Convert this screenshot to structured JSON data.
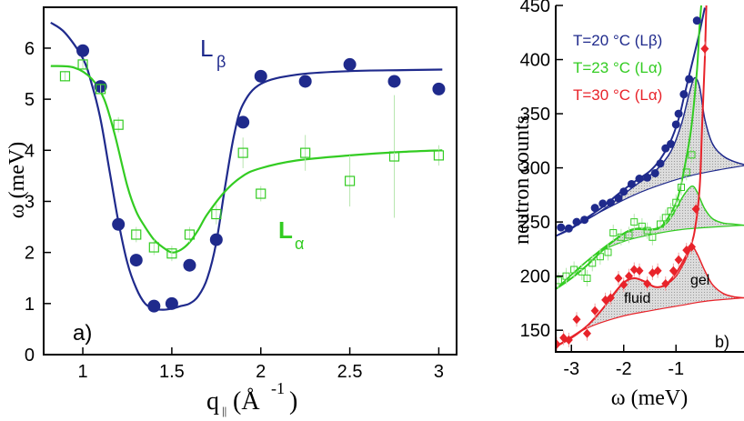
{
  "chart_data": [
    {
      "type": "scatter",
      "panel_label": "a)",
      "xlabel": "q",
      "xlabel_sub": "||",
      "xlabel_unit": "(Å",
      "xlabel_exp": "-1",
      "xlabel_close": ")",
      "ylabel": "ω (meV)",
      "xlim": [
        0.78,
        3.1
      ],
      "ylim": [
        0,
        6.8
      ],
      "xticks": [
        1,
        1.5,
        2,
        2.5,
        3
      ],
      "xtick_labels": [
        "1",
        "1.5",
        "2",
        "2.5",
        "3"
      ],
      "yticks": [
        0,
        1,
        2,
        3,
        4,
        5,
        6
      ],
      "ytick_labels": [
        "0",
        "1",
        "2",
        "3",
        "4",
        "5",
        "6"
      ],
      "annotations": [
        {
          "main": "L",
          "sub": "β",
          "color": "#1f2a8c"
        },
        {
          "main": "L",
          "sub": "α",
          "color": "#33cc22"
        }
      ],
      "series": [
        {
          "name": "Lβ",
          "color": "#1f2a8c",
          "marker": "filled-circle",
          "x": [
            1.0,
            1.1,
            1.2,
            1.3,
            1.4,
            1.5,
            1.6,
            1.75,
            1.9,
            2.0,
            2.25,
            2.5,
            2.75,
            3.0
          ],
          "y": [
            5.95,
            5.25,
            2.55,
            1.85,
            0.95,
            1.0,
            1.75,
            2.25,
            4.55,
            5.45,
            5.35,
            5.68,
            5.35,
            5.2
          ],
          "fit_x": [
            0.82,
            0.9,
            1.0,
            1.05,
            1.1,
            1.15,
            1.2,
            1.25,
            1.3,
            1.35,
            1.4,
            1.45,
            1.5,
            1.55,
            1.6,
            1.65,
            1.7,
            1.75,
            1.8,
            1.85,
            1.9,
            2.0,
            2.2,
            2.5,
            2.8,
            3.02
          ],
          "fit_y": [
            6.5,
            6.3,
            5.8,
            5.3,
            4.6,
            3.6,
            2.6,
            1.8,
            1.3,
            1.0,
            0.9,
            0.88,
            0.9,
            0.95,
            1.0,
            1.15,
            1.5,
            2.2,
            3.3,
            4.3,
            4.9,
            5.3,
            5.48,
            5.55,
            5.57,
            5.58
          ]
        },
        {
          "name": "Lα",
          "color": "#33cc22",
          "marker": "open-square",
          "x": [
            0.9,
            1.0,
            1.1,
            1.2,
            1.3,
            1.4,
            1.5,
            1.6,
            1.75,
            1.9,
            2.0,
            2.25,
            2.5,
            2.75,
            3.0
          ],
          "y": [
            5.45,
            5.68,
            5.2,
            4.5,
            2.35,
            2.1,
            1.98,
            2.35,
            2.75,
            3.95,
            3.15,
            3.95,
            3.4,
            3.88,
            3.9
          ],
          "yerr": [
            0.1,
            0.1,
            0.1,
            0.15,
            0.15,
            0.15,
            0.15,
            0.15,
            0.2,
            0.3,
            0.15,
            0.35,
            0.5,
            1.2,
            0.2
          ],
          "fit_x": [
            0.82,
            0.95,
            1.05,
            1.12,
            1.18,
            1.25,
            1.3,
            1.35,
            1.4,
            1.45,
            1.5,
            1.55,
            1.6,
            1.65,
            1.7,
            1.8,
            1.9,
            2.0,
            2.2,
            2.5,
            2.8,
            3.02
          ],
          "fit_y": [
            5.65,
            5.62,
            5.4,
            5.0,
            4.3,
            3.3,
            2.8,
            2.5,
            2.25,
            2.1,
            2.0,
            2.05,
            2.2,
            2.45,
            2.75,
            3.2,
            3.5,
            3.65,
            3.8,
            3.9,
            3.97,
            4.0
          ]
        }
      ]
    },
    {
      "type": "scatter",
      "panel_label": "b)",
      "xlabel": "ω (meV)",
      "ylabel": "neutron counts",
      "xlim": [
        -3.3,
        0.3
      ],
      "ylim": [
        130,
        450
      ],
      "xticks": [
        -3,
        -2,
        -1
      ],
      "xtick_labels": [
        "-3",
        "-2",
        "-1"
      ],
      "yticks": [
        150,
        200,
        250,
        300,
        350,
        400,
        450
      ],
      "ytick_labels": [
        "150",
        "200",
        "250",
        "300",
        "350",
        "400",
        "450"
      ],
      "legend_position": "top-left",
      "legend": [
        {
          "label": "T=20 °C (Lβ)",
          "color": "#1f2a8c"
        },
        {
          "label": "T=23 °C (Lα)",
          "color": "#33cc22"
        },
        {
          "label": "T=30 °C (Lα)",
          "color": "#e8232a"
        }
      ],
      "annotations": [
        "fluid",
        "gel"
      ],
      "series": [
        {
          "name": "T=20 °C (Lβ)",
          "color": "#1f2a8c",
          "marker": "filled-circle",
          "x": [
            -3.2,
            -3.05,
            -2.9,
            -2.75,
            -2.55,
            -2.4,
            -2.25,
            -2.1,
            -2.0,
            -1.85,
            -1.7,
            -1.55,
            -1.4,
            -1.3,
            -1.2,
            -1.1,
            -1.0,
            -0.95,
            -0.85,
            -0.75,
            -0.6
          ],
          "y": [
            245,
            244,
            250,
            252,
            263,
            267,
            268,
            272,
            278,
            285,
            290,
            291,
            295,
            304,
            318,
            322,
            340,
            350,
            368,
            382,
            436
          ],
          "fit_x": [
            -3.3,
            -3.0,
            -2.7,
            -2.4,
            -2.1,
            -1.8,
            -1.5,
            -1.3,
            -1.1,
            -0.95,
            -0.85,
            -0.75,
            -0.65,
            -0.55,
            -0.45
          ],
          "fit_y": [
            237,
            244,
            254,
            264,
            276,
            287,
            297,
            308,
            325,
            345,
            365,
            385,
            405,
            425,
            448
          ],
          "peak_x": [
            -3.3,
            -2.5,
            -1.8,
            -1.4,
            -1.1,
            -0.9,
            -0.75,
            -0.65,
            -0.55,
            -0.45,
            -0.3,
            -0.1,
            0.1,
            0.3
          ],
          "peak_y": [
            237,
            258,
            283,
            297,
            315,
            340,
            368,
            383,
            375,
            345,
            322,
            311,
            306,
            303
          ],
          "base_x": [
            -3.3,
            -2.5,
            -1.8,
            -1.2,
            -0.7,
            -0.2,
            0.3
          ],
          "base_y": [
            237,
            258,
            275,
            286,
            293,
            298,
            302
          ]
        },
        {
          "name": "T=23 °C (Lα)",
          "color": "#33cc22",
          "marker": "open-square",
          "x": [
            -3.25,
            -3.1,
            -2.95,
            -2.8,
            -2.7,
            -2.6,
            -2.45,
            -2.3,
            -2.2,
            -2.05,
            -1.9,
            -1.8,
            -1.65,
            -1.55,
            -1.45,
            -1.3,
            -1.2,
            -1.1,
            -1.0,
            -0.9,
            -0.8,
            -0.7
          ],
          "y": [
            196,
            200,
            206,
            204,
            198,
            212,
            218,
            222,
            240,
            236,
            238,
            250,
            246,
            242,
            236,
            248,
            254,
            260,
            268,
            282,
            296,
            312
          ],
          "fit_x": [
            -3.3,
            -3.0,
            -2.7,
            -2.4,
            -2.1,
            -1.9,
            -1.7,
            -1.5,
            -1.3,
            -1.1,
            -0.95,
            -0.8,
            -0.7,
            -0.6,
            -0.55,
            -0.5
          ],
          "fit_y": [
            188,
            198,
            210,
            224,
            236,
            242,
            244,
            243,
            245,
            258,
            275,
            310,
            340,
            390,
            430,
            460
          ],
          "peak_x": [
            -3.3,
            -2.6,
            -2.1,
            -1.8,
            -1.5,
            -1.2,
            -1.0,
            -0.85,
            -0.7,
            -0.6,
            -0.45,
            -0.3,
            -0.1,
            0.1,
            0.3
          ],
          "peak_y": [
            188,
            218,
            236,
            243,
            243,
            248,
            262,
            275,
            283,
            278,
            262,
            253,
            249,
            248,
            247
          ],
          "base_x": [
            -3.3,
            -2.6,
            -2.0,
            -1.4,
            -0.9,
            -0.4,
            0.3
          ],
          "base_y": [
            188,
            218,
            232,
            239,
            243,
            245,
            247
          ]
        },
        {
          "name": "T=30 °C (Lα)",
          "color": "#e8232a",
          "marker": "filled-diamond",
          "x": [
            -3.28,
            -3.15,
            -3.05,
            -2.9,
            -2.7,
            -2.55,
            -2.35,
            -2.25,
            -2.1,
            -2.0,
            -1.9,
            -1.8,
            -1.7,
            -1.55,
            -1.45,
            -1.35,
            -1.2,
            -1.05,
            -0.95,
            -0.8,
            -0.7,
            -0.62,
            -0.45
          ],
          "y": [
            137,
            143,
            141,
            160,
            147,
            168,
            178,
            180,
            198,
            192,
            200,
            206,
            205,
            193,
            203,
            205,
            193,
            205,
            215,
            224,
            227,
            262,
            410
          ],
          "fit_x": [
            -3.3,
            -3.0,
            -2.7,
            -2.4,
            -2.2,
            -2.0,
            -1.8,
            -1.6,
            -1.4,
            -1.2,
            -1.0,
            -0.85,
            -0.75,
            -0.65,
            -0.55,
            -0.5,
            -0.45,
            -0.42
          ],
          "fit_y": [
            135,
            143,
            154,
            170,
            183,
            194,
            198,
            195,
            190,
            192,
            203,
            215,
            225,
            240,
            280,
            340,
            400,
            450
          ],
          "peak_x": [
            -3.3,
            -2.7,
            -2.3,
            -2.0,
            -1.8,
            -1.6,
            -1.4,
            -1.2,
            -1.0,
            -0.85,
            -0.7,
            -0.6,
            -0.45,
            -0.3,
            -0.1,
            0.1,
            0.3
          ],
          "peak_y": [
            135,
            154,
            176,
            194,
            198,
            195,
            190,
            192,
            200,
            212,
            226,
            221,
            205,
            192,
            184,
            181,
            180
          ],
          "base_x": [
            -3.3,
            -2.7,
            -2.1,
            -1.5,
            -0.9,
            -0.4,
            0.3
          ],
          "base_y": [
            135,
            152,
            162,
            168,
            173,
            177,
            180
          ]
        }
      ]
    }
  ]
}
